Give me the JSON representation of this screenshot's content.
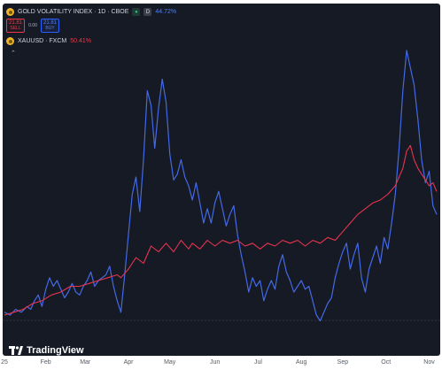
{
  "legend": {
    "gvz": {
      "title": "GOLD VOLATILITY INDEX · 1D · CBOE",
      "value": "44.72%",
      "icon": "gold-coin-icon",
      "badge_d": "D"
    },
    "xau": {
      "title": "XAUUSD · FXCM",
      "value": "50.41%",
      "icon": "gold-coin-icon"
    }
  },
  "trade": {
    "sell_price": "21.81",
    "sell_label": "SELL",
    "spread": "0.00",
    "buy_price": "21.81",
    "buy_label": "BUY"
  },
  "branding": {
    "name": "TradingView"
  },
  "colors": {
    "background": "#161a25",
    "gvz_line": "#4469e6",
    "xau_line": "#e8344e",
    "baseline": "#4a4f5c"
  },
  "chart_data": {
    "type": "line",
    "x_tick_labels": [
      "25",
      "Feb",
      "Mar",
      "Apr",
      "May",
      "Jun",
      "Jul",
      "Aug",
      "Sep",
      "Oct",
      "Nov"
    ],
    "x_tick_index": [
      0,
      22,
      43,
      66,
      88,
      112,
      135,
      158,
      180,
      203,
      226
    ],
    "x_range": [
      0,
      230
    ],
    "y_range": [
      0,
      100
    ],
    "grid": false,
    "series": [
      {
        "key": "gvz",
        "color": "#4469e6",
        "points": [
          [
            0,
            5
          ],
          [
            3,
            4
          ],
          [
            6,
            6
          ],
          [
            9,
            5
          ],
          [
            12,
            7
          ],
          [
            14,
            6
          ],
          [
            16,
            9
          ],
          [
            18,
            11
          ],
          [
            20,
            7
          ],
          [
            22,
            13
          ],
          [
            24,
            17
          ],
          [
            26,
            14
          ],
          [
            28,
            16
          ],
          [
            30,
            13
          ],
          [
            32,
            10
          ],
          [
            34,
            12
          ],
          [
            36,
            15
          ],
          [
            38,
            12
          ],
          [
            40,
            11
          ],
          [
            42,
            14
          ],
          [
            44,
            16
          ],
          [
            46,
            19
          ],
          [
            48,
            14
          ],
          [
            50,
            16
          ],
          [
            52,
            17
          ],
          [
            54,
            18
          ],
          [
            56,
            21
          ],
          [
            58,
            14
          ],
          [
            60,
            9
          ],
          [
            62,
            5
          ],
          [
            64,
            18
          ],
          [
            66,
            32
          ],
          [
            68,
            46
          ],
          [
            70,
            52
          ],
          [
            72,
            40
          ],
          [
            74,
            58
          ],
          [
            76,
            82
          ],
          [
            78,
            77
          ],
          [
            80,
            62
          ],
          [
            82,
            76
          ],
          [
            84,
            86
          ],
          [
            86,
            78
          ],
          [
            88,
            60
          ],
          [
            90,
            51
          ],
          [
            92,
            53
          ],
          [
            94,
            58
          ],
          [
            96,
            52
          ],
          [
            98,
            49
          ],
          [
            100,
            44
          ],
          [
            102,
            50
          ],
          [
            104,
            43
          ],
          [
            106,
            36
          ],
          [
            108,
            41
          ],
          [
            110,
            36
          ],
          [
            112,
            43
          ],
          [
            114,
            47
          ],
          [
            116,
            41
          ],
          [
            118,
            35
          ],
          [
            120,
            39
          ],
          [
            122,
            42
          ],
          [
            124,
            32
          ],
          [
            126,
            25
          ],
          [
            128,
            19
          ],
          [
            130,
            12
          ],
          [
            132,
            17
          ],
          [
            134,
            14
          ],
          [
            136,
            16
          ],
          [
            138,
            9
          ],
          [
            140,
            13
          ],
          [
            142,
            16
          ],
          [
            144,
            13
          ],
          [
            146,
            21
          ],
          [
            148,
            25
          ],
          [
            150,
            19
          ],
          [
            152,
            16
          ],
          [
            154,
            12
          ],
          [
            156,
            14
          ],
          [
            158,
            16
          ],
          [
            160,
            13
          ],
          [
            162,
            14
          ],
          [
            164,
            9
          ],
          [
            166,
            4
          ],
          [
            168,
            2
          ],
          [
            170,
            5
          ],
          [
            172,
            8
          ],
          [
            174,
            10
          ],
          [
            176,
            17
          ],
          [
            178,
            22
          ],
          [
            180,
            26
          ],
          [
            182,
            29
          ],
          [
            184,
            20
          ],
          [
            186,
            25
          ],
          [
            188,
            29
          ],
          [
            190,
            17
          ],
          [
            192,
            12
          ],
          [
            194,
            20
          ],
          [
            196,
            24
          ],
          [
            198,
            28
          ],
          [
            200,
            22
          ],
          [
            202,
            31
          ],
          [
            204,
            27
          ],
          [
            206,
            36
          ],
          [
            208,
            46
          ],
          [
            210,
            62
          ],
          [
            212,
            82
          ],
          [
            214,
            96
          ],
          [
            216,
            90
          ],
          [
            218,
            84
          ],
          [
            220,
            72
          ],
          [
            222,
            58
          ],
          [
            224,
            50
          ],
          [
            226,
            54
          ],
          [
            228,
            42
          ],
          [
            230,
            39
          ]
        ]
      },
      {
        "key": "xau",
        "color": "#e8344e",
        "points": [
          [
            0,
            4
          ],
          [
            5,
            5
          ],
          [
            10,
            6
          ],
          [
            15,
            8
          ],
          [
            20,
            9
          ],
          [
            25,
            11
          ],
          [
            30,
            12
          ],
          [
            35,
            14
          ],
          [
            40,
            14
          ],
          [
            45,
            15
          ],
          [
            50,
            16
          ],
          [
            55,
            17
          ],
          [
            60,
            18
          ],
          [
            62,
            17
          ],
          [
            66,
            20
          ],
          [
            70,
            24
          ],
          [
            74,
            22
          ],
          [
            78,
            28
          ],
          [
            82,
            26
          ],
          [
            86,
            29
          ],
          [
            90,
            26
          ],
          [
            94,
            30
          ],
          [
            98,
            27
          ],
          [
            100,
            29
          ],
          [
            104,
            27
          ],
          [
            108,
            30
          ],
          [
            112,
            28
          ],
          [
            116,
            30
          ],
          [
            120,
            29
          ],
          [
            124,
            30
          ],
          [
            128,
            28
          ],
          [
            132,
            29
          ],
          [
            136,
            27
          ],
          [
            140,
            29
          ],
          [
            144,
            28
          ],
          [
            148,
            30
          ],
          [
            152,
            29
          ],
          [
            156,
            30
          ],
          [
            160,
            28
          ],
          [
            164,
            30
          ],
          [
            168,
            29
          ],
          [
            172,
            31
          ],
          [
            176,
            30
          ],
          [
            180,
            33
          ],
          [
            184,
            36
          ],
          [
            188,
            39
          ],
          [
            192,
            41
          ],
          [
            196,
            43
          ],
          [
            200,
            44
          ],
          [
            204,
            46
          ],
          [
            208,
            49
          ],
          [
            212,
            55
          ],
          [
            214,
            61
          ],
          [
            216,
            63
          ],
          [
            218,
            58
          ],
          [
            220,
            55
          ],
          [
            222,
            53
          ],
          [
            224,
            51
          ],
          [
            226,
            49
          ],
          [
            228,
            50
          ],
          [
            230,
            47
          ]
        ]
      }
    ]
  }
}
